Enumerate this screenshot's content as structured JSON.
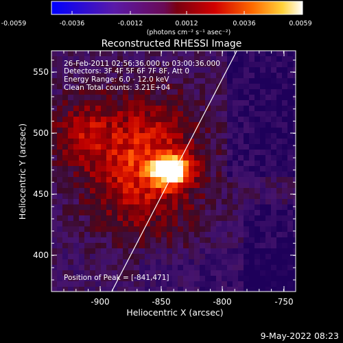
{
  "colorbar": {
    "ticks": [
      "-0.0059",
      "-0.0036",
      "-0.0012",
      "0.0012",
      "0.0036",
      "0.0059"
    ],
    "unit_label": "(photons cm⁻² s⁻¹ asec⁻²)"
  },
  "plot": {
    "title": "Reconstructed RHESSI Image",
    "x_label": "Heliocentric X (arcsec)",
    "y_label": "Heliocentric Y (arcsec)",
    "x_ticks": [
      "-900",
      "-850",
      "-800",
      "-750"
    ],
    "y_ticks": [
      "400",
      "450",
      "500",
      "550"
    ],
    "x_range": [
      -935,
      -745
    ],
    "y_range": [
      375,
      563
    ]
  },
  "annotations": {
    "time_range": "26-Feb-2011 02:56:36.000 to 03:00:36.000",
    "detectors": "Detectors: 3F 4F 5F 6F 7F 8F, Att 0",
    "energy": "Energy Range: 6.0 - 12.0 keV",
    "clean": "Clean    Total counts: 3.21E+04",
    "peak": "Position of Peak = [-841,471]"
  },
  "footer": {
    "timestamp": "9-May-2022 08:23"
  }
}
